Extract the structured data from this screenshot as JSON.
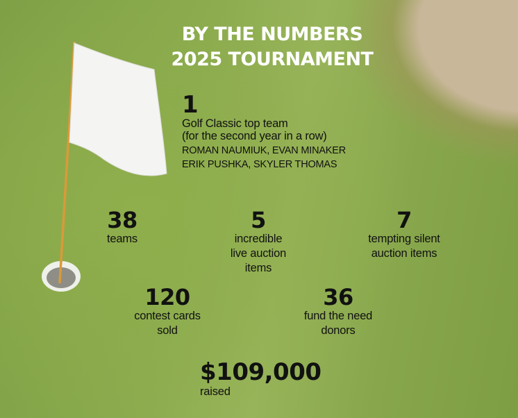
{
  "header": {
    "title": [
      "BY THE NUMBERS",
      "2025 TOURNAMENT"
    ]
  },
  "stats": [
    {
      "number": "1",
      "lines": [
        "Golf Classic top team",
        "(for the second year in a row)",
        "ROMAN NAUMIUK, EVAN MINAKER",
        "ERIK PUSHKA, SKYLER THOMAS"
      ]
    },
    {
      "number": "38",
      "lines": [
        "teams"
      ]
    },
    {
      "number": "5",
      "lines": [
        "incredible",
        "live auction",
        "items"
      ]
    },
    {
      "number": "7",
      "lines": [
        "tempting silent",
        "auction items"
      ]
    },
    {
      "number": "120",
      "lines": [
        "contest cards",
        "sold"
      ]
    },
    {
      "number": "36",
      "lines": [
        "fund the need",
        "donors"
      ]
    },
    {
      "number": "$109,000",
      "lines": [
        "raised"
      ]
    }
  ]
}
